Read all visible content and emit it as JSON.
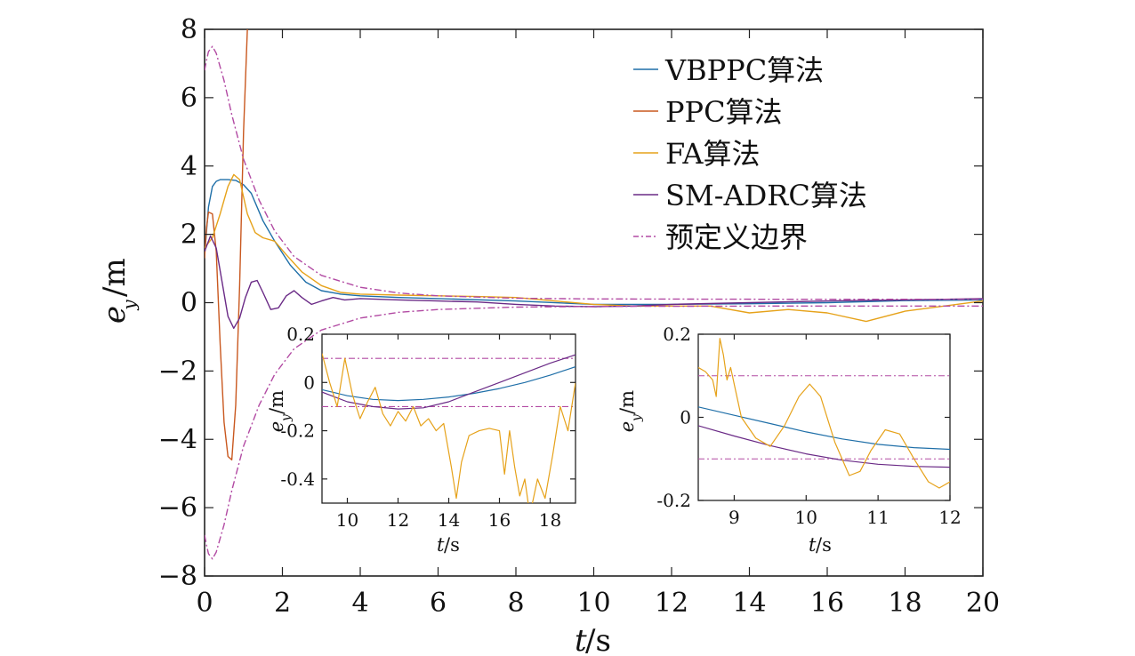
{
  "chart_data": [
    {
      "type": "line",
      "xlabel": "t/s",
      "ylabel": "e_y/m",
      "xlim": [
        0,
        20
      ],
      "ylim": [
        -8,
        8
      ],
      "xticks": [
        "0",
        "2",
        "4",
        "6",
        "8",
        "10",
        "12",
        "14",
        "16",
        "18",
        "20"
      ],
      "yticks": [
        "8",
        "6",
        "4",
        "2",
        "0",
        "−2",
        "−4",
        "−6",
        "−8"
      ],
      "grid": false,
      "legend_position": "top-right",
      "colors": {
        "VBPPC": "#1f6fa8",
        "PPC": "#c9581f",
        "FA": "#e6a21a",
        "SMADRC": "#6a2a86",
        "bound": "#b24aa3"
      },
      "series": [
        {
          "name": "VBPPC算法",
          "key": "VBPPC",
          "x": [
            0,
            0.1,
            0.2,
            0.3,
            0.4,
            0.6,
            0.8,
            1.0,
            1.2,
            1.5,
            1.8,
            2.2,
            2.6,
            3.0,
            3.5,
            4,
            5,
            6,
            8,
            10,
            12,
            14,
            16,
            18,
            20
          ],
          "y": [
            1.4,
            2.8,
            3.4,
            3.55,
            3.6,
            3.6,
            3.58,
            3.45,
            3.2,
            2.4,
            1.8,
            1.1,
            0.6,
            0.35,
            0.25,
            0.2,
            0.15,
            0.12,
            0.05,
            -0.05,
            -0.05,
            -0.03,
            0.0,
            0.06,
            0.08
          ]
        },
        {
          "name": "PPC算法",
          "key": "PPC",
          "x": [
            0,
            0.05,
            0.1,
            0.2,
            0.3,
            0.4,
            0.5,
            0.6,
            0.7,
            0.8,
            0.9,
            1.0,
            1.1
          ],
          "y": [
            1.3,
            2.2,
            2.65,
            2.6,
            1.5,
            -1.2,
            -3.5,
            -4.5,
            -4.6,
            -3.0,
            0.5,
            5.0,
            8.0
          ]
        },
        {
          "name": "FA算法",
          "key": "FA",
          "x": [
            0,
            0.2,
            0.4,
            0.6,
            0.75,
            0.9,
            1.1,
            1.3,
            1.5,
            1.8,
            2.1,
            2.5,
            3.0,
            3.5,
            4,
            5,
            6,
            7,
            8,
            9,
            10,
            11,
            12,
            13,
            14,
            15,
            16,
            17,
            18,
            19,
            20
          ],
          "y": [
            1.6,
            1.9,
            2.6,
            3.4,
            3.75,
            3.6,
            2.6,
            2.05,
            1.9,
            1.8,
            1.4,
            0.9,
            0.5,
            0.3,
            0.25,
            0.22,
            0.2,
            0.18,
            0.15,
            0.05,
            -0.05,
            -0.1,
            -0.1,
            -0.1,
            -0.3,
            -0.2,
            -0.3,
            -0.55,
            -0.25,
            -0.1,
            0.05
          ]
        },
        {
          "name": "SM-ADRC算法",
          "key": "SMADRC",
          "x": [
            0,
            0.15,
            0.3,
            0.45,
            0.6,
            0.75,
            0.9,
            1.05,
            1.2,
            1.35,
            1.5,
            1.7,
            1.9,
            2.1,
            2.3,
            2.5,
            2.75,
            3.0,
            3.3,
            3.6,
            4,
            5,
            6,
            7,
            8,
            9,
            10,
            11,
            12,
            14,
            16,
            18,
            20
          ],
          "y": [
            1.5,
            1.95,
            1.6,
            0.6,
            -0.4,
            -0.75,
            -0.45,
            0.15,
            0.6,
            0.65,
            0.3,
            -0.2,
            -0.15,
            0.2,
            0.35,
            0.15,
            -0.05,
            0.05,
            0.15,
            0.08,
            0.12,
            0.08,
            0.05,
            0.02,
            -0.05,
            -0.1,
            -0.12,
            -0.1,
            -0.05,
            0,
            0.05,
            0.08,
            0.12
          ]
        },
        {
          "name": "预定义边界",
          "key": "bound",
          "style": "dashdot",
          "x": [
            0,
            0.05,
            0.1,
            0.2,
            0.3,
            0.5,
            0.7,
            1.0,
            1.4,
            1.8,
            2.3,
            3.0,
            4,
            5,
            6,
            8,
            10,
            15,
            20
          ],
          "y": [
            6.8,
            7.1,
            7.35,
            7.5,
            7.3,
            6.5,
            5.5,
            4.2,
            3.0,
            2.1,
            1.35,
            0.8,
            0.45,
            0.28,
            0.2,
            0.13,
            0.11,
            0.1,
            0.1
          ]
        }
      ]
    },
    {
      "type": "line",
      "xlabel": "t/s",
      "ylabel": "e_y/m",
      "xlim": [
        9,
        19
      ],
      "ylim": [
        -0.5,
        0.2
      ],
      "xticks": [
        "10",
        "12",
        "14",
        "16",
        "18"
      ],
      "yticks": [
        "0.2",
        "0",
        "-0.2",
        "-0.4"
      ],
      "series": [
        {
          "key": "VBPPC",
          "x": [
            9,
            10,
            11,
            12,
            13,
            14,
            15,
            16,
            17,
            18,
            19
          ],
          "y": [
            -0.03,
            -0.055,
            -0.07,
            -0.075,
            -0.07,
            -0.06,
            -0.045,
            -0.025,
            0.0,
            0.03,
            0.065
          ]
        },
        {
          "key": "SMADRC",
          "x": [
            9,
            10,
            11,
            12,
            13,
            14,
            15,
            16,
            17,
            18,
            19
          ],
          "y": [
            -0.04,
            -0.08,
            -0.1,
            -0.11,
            -0.105,
            -0.08,
            -0.04,
            0.0,
            0.04,
            0.08,
            0.115
          ]
        },
        {
          "key": "FA",
          "x": [
            9,
            9.3,
            9.6,
            9.9,
            10.2,
            10.5,
            10.8,
            11.1,
            11.4,
            11.7,
            12.0,
            12.3,
            12.6,
            12.9,
            13.2,
            13.5,
            13.8,
            14.1,
            14.3,
            14.5,
            14.8,
            15.2,
            15.6,
            16.0,
            16.2,
            16.4,
            16.6,
            16.8,
            17.0,
            17.2,
            17.5,
            17.8,
            18.1,
            18.4,
            18.7,
            19
          ],
          "y": [
            0.12,
            0.0,
            -0.1,
            0.1,
            -0.05,
            -0.15,
            -0.08,
            -0.02,
            -0.13,
            -0.18,
            -0.12,
            -0.16,
            -0.1,
            -0.18,
            -0.15,
            -0.2,
            -0.17,
            -0.35,
            -0.48,
            -0.33,
            -0.22,
            -0.2,
            -0.19,
            -0.2,
            -0.38,
            -0.2,
            -0.35,
            -0.47,
            -0.4,
            -0.55,
            -0.4,
            -0.48,
            -0.3,
            -0.1,
            -0.2,
            0.0
          ]
        }
      ],
      "bounds": [
        0.1,
        -0.1
      ]
    },
    {
      "type": "line",
      "xlabel": "t/s",
      "ylabel": "e_y/m",
      "xlim": [
        8.5,
        12
      ],
      "ylim": [
        -0.2,
        0.2
      ],
      "xticks": [
        "9",
        "10",
        "11",
        "12"
      ],
      "yticks": [
        "0.2",
        "0",
        "-0.2"
      ],
      "series": [
        {
          "key": "VBPPC",
          "x": [
            8.5,
            9,
            9.5,
            10,
            10.5,
            11,
            11.5,
            12
          ],
          "y": [
            0.025,
            0.005,
            -0.015,
            -0.035,
            -0.052,
            -0.065,
            -0.073,
            -0.077
          ]
        },
        {
          "key": "SMADRC",
          "x": [
            8.5,
            9,
            9.5,
            10,
            10.5,
            11,
            11.5,
            12
          ],
          "y": [
            -0.02,
            -0.045,
            -0.068,
            -0.088,
            -0.103,
            -0.113,
            -0.118,
            -0.12
          ]
        },
        {
          "key": "FA",
          "x": [
            8.5,
            8.6,
            8.7,
            8.75,
            8.8,
            8.85,
            8.9,
            8.95,
            9.0,
            9.1,
            9.3,
            9.5,
            9.7,
            9.9,
            10.05,
            10.2,
            10.4,
            10.6,
            10.75,
            10.9,
            11.1,
            11.3,
            11.5,
            11.7,
            11.85,
            12
          ],
          "y": [
            0.12,
            0.11,
            0.09,
            0.05,
            0.19,
            0.15,
            0.09,
            0.12,
            0.08,
            0.0,
            -0.05,
            -0.07,
            -0.02,
            0.05,
            0.08,
            0.05,
            -0.06,
            -0.14,
            -0.13,
            -0.08,
            -0.03,
            -0.04,
            -0.1,
            -0.155,
            -0.17,
            -0.155
          ]
        }
      ],
      "bounds": [
        0.1,
        -0.1
      ]
    }
  ]
}
